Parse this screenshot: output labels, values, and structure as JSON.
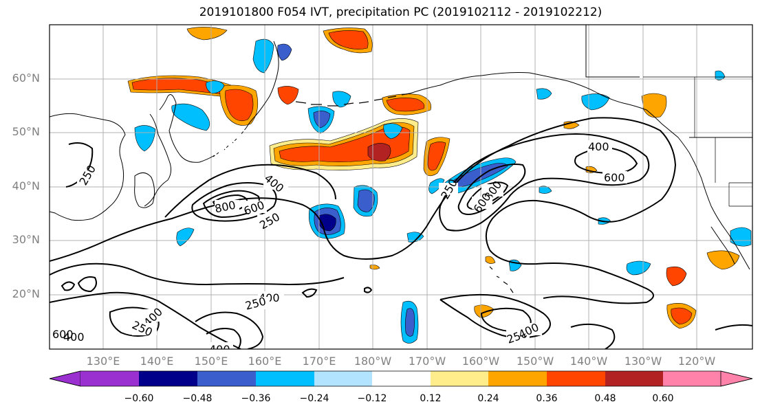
{
  "title": "2019101800 F054 IVT, precipitation PC (2019102112 - 2019102212)",
  "lat_labels": [
    "60°N",
    "50°N",
    "40°N",
    "30°N",
    "20°N"
  ],
  "lon_labels": [
    "130°E",
    "140°E",
    "150°E",
    "160°E",
    "170°E",
    "180°W",
    "170°W",
    "160°W",
    "150°W",
    "140°W",
    "130°W",
    "120°W"
  ],
  "colorbar": {
    "colors": [
      "#9b30d0",
      "#00008b",
      "#3a5fcd",
      "#00bfff",
      "#b2e4ff",
      "#ffffff",
      "#ffec8b",
      "#ffa500",
      "#ff4500",
      "#b22222",
      "#ff82ab"
    ],
    "tick_labels": [
      "−0.60",
      "−0.48",
      "−0.36",
      "−0.24",
      "−0.12",
      "0.12",
      "0.24",
      "0.36",
      "0.48",
      "0.60"
    ]
  },
  "contour_labels": {
    "w250": "250",
    "k800": "800",
    "k600": "600",
    "k400": "400",
    "k250": "250",
    "c400": "400",
    "c600": "600",
    "c250": "250",
    "c800": "800",
    "c600b": "600",
    "s400a": "400",
    "s250a": "250",
    "s400b": "400",
    "s250b": "250",
    "s400c": "400",
    "s250c": "250",
    "s400d": "400",
    "e400": "400",
    "e600": "600"
  }
}
